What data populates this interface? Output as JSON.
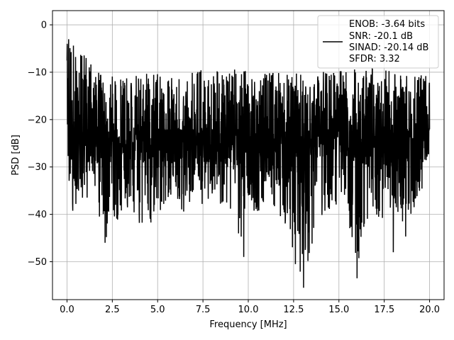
{
  "chart_data": {
    "type": "line",
    "xlabel": "Frequency [MHz]",
    "ylabel": "PSD [dB]",
    "xlim": [
      -0.8,
      20.8
    ],
    "ylim": [
      -58,
      3
    ],
    "xticks": [
      0.0,
      2.5,
      5.0,
      7.5,
      10.0,
      12.5,
      15.0,
      17.5,
      20.0
    ],
    "xtick_labels": [
      "0.0",
      "2.5",
      "5.0",
      "7.5",
      "10.0",
      "12.5",
      "15.0",
      "17.5",
      "20.0"
    ],
    "yticks": [
      0,
      -10,
      -20,
      -30,
      -40,
      -50
    ],
    "ytick_labels": [
      "0",
      "−10",
      "−20",
      "−30",
      "−40",
      "−50"
    ],
    "grid": true,
    "legend_placement": "top-right",
    "legend_lines": [
      "ENOB: -3.64 bits",
      "SNR: -20.1 dB",
      "SINAD: -20.14 dB",
      "SFDR: 3.32"
    ],
    "line_color": "#000000",
    "series": [
      {
        "x": [
          0.0,
          0.02,
          0.05,
          0.1,
          0.15,
          0.2,
          0.25,
          0.3,
          0.4,
          0.5,
          0.7,
          1.0,
          1.5,
          2.0,
          2.5,
          3.0,
          3.5,
          4.0,
          4.5,
          5.0,
          5.5,
          6.0,
          6.5,
          7.0,
          7.5,
          8.0,
          8.5,
          9.0,
          9.5,
          10.0,
          10.5,
          11.0,
          11.5,
          12.0,
          12.5,
          13.0,
          13.5,
          14.0,
          14.5,
          15.0,
          15.5,
          16.0,
          16.5,
          17.0,
          17.5,
          18.0,
          18.5,
          19.0,
          19.5,
          20.0
        ],
        "y": [
          0,
          -3,
          -8,
          -12,
          -28,
          -44,
          -35,
          -45,
          -30,
          -42,
          -35,
          -38,
          -36,
          -46,
          -43,
          -40,
          -38,
          -42,
          -44,
          -39,
          -40,
          -38,
          -41,
          -37,
          -40,
          -36,
          -38,
          -39,
          -49,
          -38,
          -41,
          -36,
          -40,
          -44,
          -48,
          -55,
          -47,
          -42,
          -40,
          -39,
          -41,
          -53,
          -42,
          -40,
          -44,
          -36,
          -48,
          -40,
          -37,
          -26
        ]
      }
    ],
    "peaks_upper": [
      {
        "x": 0.0,
        "y": -1
      },
      {
        "x": 2.0,
        "y": -11
      },
      {
        "x": 5.0,
        "y": -10
      },
      {
        "x": 8.5,
        "y": -9
      },
      {
        "x": 10.5,
        "y": -10
      },
      {
        "x": 13.5,
        "y": -10
      },
      {
        "x": 16.0,
        "y": -9
      },
      {
        "x": 19.5,
        "y": -10
      }
    ],
    "floor_mean": -22,
    "notable_minima": [
      {
        "x": 2.1,
        "y": -46
      },
      {
        "x": 9.75,
        "y": -49
      },
      {
        "x": 12.6,
        "y": -50.5
      },
      {
        "x": 13.05,
        "y": -55.5
      },
      {
        "x": 16.0,
        "y": -53.5
      },
      {
        "x": 18.0,
        "y": -48
      }
    ]
  }
}
